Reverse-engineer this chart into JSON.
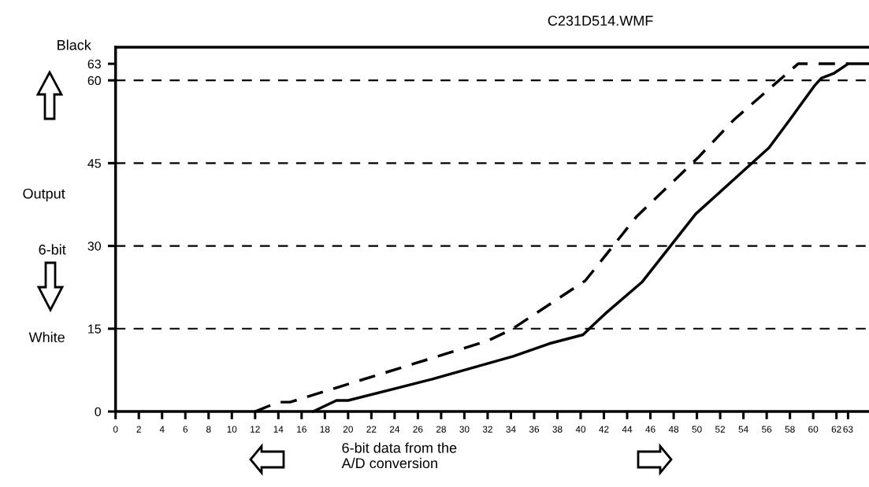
{
  "chart_data": {
    "type": "line",
    "xlabel": "6-bit data from the\nA/D conversion",
    "annotations": [
      "C231D514.WMF",
      "Black",
      "Output",
      "6-bit",
      "White"
    ],
    "xlim": [
      0,
      64.8
    ],
    "ylim": [
      0,
      66
    ],
    "xticks": [
      0,
      2,
      4,
      6,
      8,
      10,
      12,
      14,
      16,
      18,
      20,
      22,
      24,
      26,
      28,
      30,
      32,
      34,
      36,
      38,
      40,
      42,
      44,
      46,
      48,
      50,
      52,
      54,
      56,
      58,
      60,
      62,
      63
    ],
    "yticks": [
      0,
      15,
      30,
      45,
      60,
      63
    ],
    "grid": false,
    "legend": false,
    "marker": "none",
    "ref_lines": [
      {
        "axis": "y",
        "value": 15,
        "color": "#000000",
        "line_style": "dashed"
      },
      {
        "axis": "y",
        "value": 30,
        "color": "#000000",
        "line_style": "dashed"
      },
      {
        "axis": "y",
        "value": 45,
        "color": "#000000",
        "line_style": "dashed"
      },
      {
        "axis": "y",
        "value": 60,
        "color": "#000000",
        "line_style": "dashed"
      }
    ],
    "series": [
      {
        "color": "#000000",
        "line_style": "solid",
        "x": [
          17,
          19,
          20,
          27.3,
          34.2,
          37.3,
          40.2,
          42.1,
          45.3,
          49.9,
          56.2,
          58,
          60.1,
          60.7,
          61.8,
          63,
          64.8
        ],
        "values": [
          0,
          2,
          2,
          5.9,
          10,
          12.3,
          13.9,
          17.7,
          23.5,
          35.8,
          47.8,
          52.9,
          59,
          60.4,
          61.3,
          63,
          63
        ]
      },
      {
        "color": "#000000",
        "line_style": "dashed",
        "x": [
          12,
          14,
          15,
          32,
          34,
          40.4,
          44.8,
          50.1,
          53.2,
          58.7,
          63
        ],
        "values": [
          0,
          1.7,
          1.7,
          12.8,
          14.8,
          23.7,
          35.3,
          46,
          52.9,
          63,
          63
        ]
      }
    ]
  }
}
